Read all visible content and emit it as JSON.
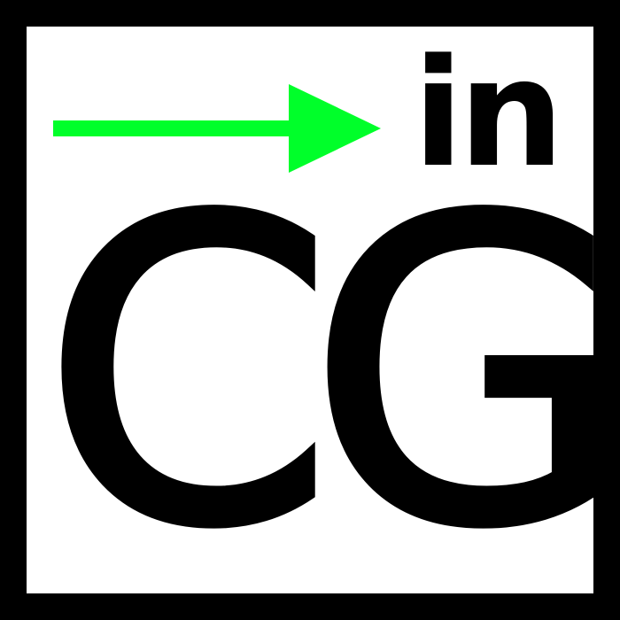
{
  "logo": {
    "top_word": "in",
    "main_word": "CG"
  },
  "icons": {
    "arrow": "right-arrow-icon"
  },
  "colors": {
    "border": "#000000",
    "background": "#ffffff",
    "text": "#000000",
    "arrow": "#00ff2a"
  }
}
